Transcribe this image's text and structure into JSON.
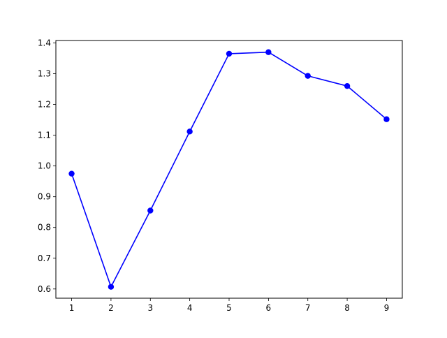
{
  "chart_data": {
    "type": "line",
    "title": "",
    "xlabel": "",
    "ylabel": "",
    "x": [
      1,
      2,
      3,
      4,
      5,
      6,
      7,
      8,
      9
    ],
    "series": [
      {
        "values": [
          0.975,
          0.607,
          0.855,
          1.112,
          1.365,
          1.37,
          1.293,
          1.26,
          1.152
        ],
        "color": "#0000ff",
        "marker": "circle"
      }
    ],
    "xlim": [
      0.6,
      9.4
    ],
    "ylim": [
      0.57,
      1.408
    ],
    "xticks": [
      1,
      2,
      3,
      4,
      5,
      6,
      7,
      8,
      9
    ],
    "yticks": [
      0.6,
      0.7,
      0.8,
      0.9,
      1.0,
      1.1,
      1.2,
      1.3,
      1.4
    ],
    "yticklabels": [
      "0.6",
      "0.7",
      "0.8",
      "0.9",
      "1.0",
      "1.1",
      "1.2",
      "1.3",
      "1.4"
    ],
    "grid": false,
    "legend": "none"
  }
}
